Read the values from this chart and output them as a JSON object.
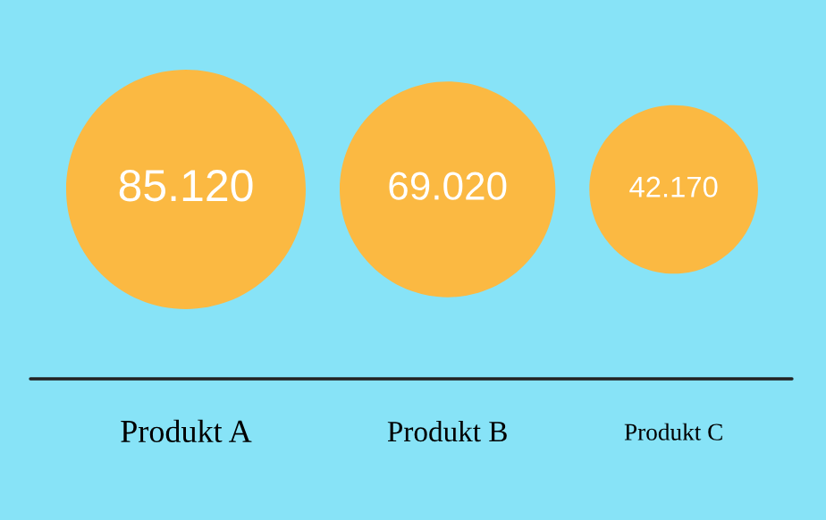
{
  "chart_data": {
    "type": "other",
    "color": "#fbb942",
    "categories": [
      "Produkt A",
      "Produkt B",
      "Produkt C"
    ],
    "values": [
      85120,
      69020,
      42170
    ],
    "value_labels": [
      "85.120",
      "69.020",
      "42.170"
    ]
  }
}
